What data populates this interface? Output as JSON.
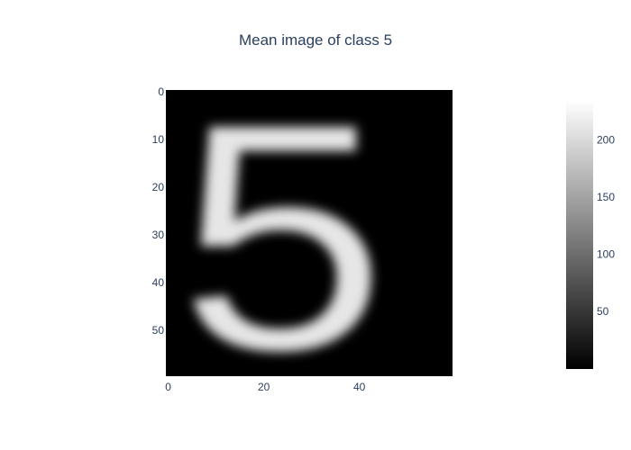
{
  "chart_data": {
    "type": "heatmap",
    "title": "Mean image of class 5",
    "xlabel": "",
    "ylabel": "",
    "rows": 60,
    "cols": 60,
    "x_ticks": [
      0,
      20,
      40
    ],
    "y_ticks": [
      0,
      10,
      20,
      30,
      40,
      50
    ],
    "y_axis_reversed": true,
    "colorscale": "greys",
    "colorbar": {
      "range": [
        0,
        235
      ],
      "ticks": [
        50,
        100,
        150,
        200
      ]
    },
    "grid": false,
    "legend": "none",
    "glyph": "5",
    "background_value": 0,
    "stroke_peak_value": 235
  }
}
